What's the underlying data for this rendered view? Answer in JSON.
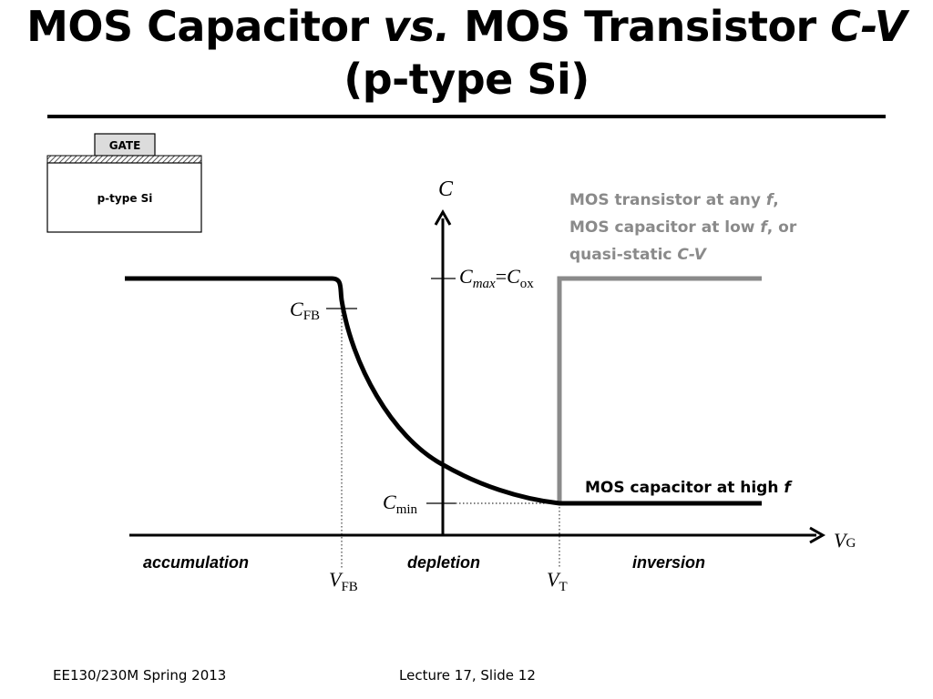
{
  "title": {
    "part1": "MOS Capacitor ",
    "vs": "vs.",
    "part2": " MOS Transistor ",
    "cv": "C-V",
    "line2": "(p-type Si)"
  },
  "device": {
    "gate_label": "GATE",
    "substrate_label": "p-type Si"
  },
  "axes": {
    "y_symbol": "C",
    "x_symbol": "V",
    "x_subscript": "G"
  },
  "labels": {
    "cmax_c": "C",
    "cmax_sub": "max",
    "cmax_eq": "=",
    "cox_c": "C",
    "cox_sub": "ox",
    "cfb_c": "C",
    "cfb_sub": "FB",
    "cmin_c": "C",
    "cmin_sub": "min",
    "vfb_v": "V",
    "vfb_sub": "FB",
    "vt_v": "V",
    "vt_sub": "T"
  },
  "regions": {
    "accumulation": "accumulation",
    "depletion": "depletion",
    "inversion": "inversion"
  },
  "legend": {
    "gray_line1_a": "MOS transistor at any ",
    "gray_line1_f": "f",
    "gray_line1_b": ",",
    "gray_line2_a": "MOS capacitor at low ",
    "gray_line2_f": "f",
    "gray_line2_b": ", or",
    "gray_line3_a": "quasi-static ",
    "gray_line3_cv": "C-V",
    "black_a": "MOS capacitor at high ",
    "black_f": "f"
  },
  "colors": {
    "curve": "#000000",
    "transistor_curve": "#8a8a8a",
    "gray_text": "#8a8a8a",
    "oxide_hatch": "#555555",
    "gate_fill": "#dcdcdc"
  },
  "footer": {
    "course": "EE130/230M Spring 2013",
    "lecture": "Lecture 17, Slide 12"
  }
}
